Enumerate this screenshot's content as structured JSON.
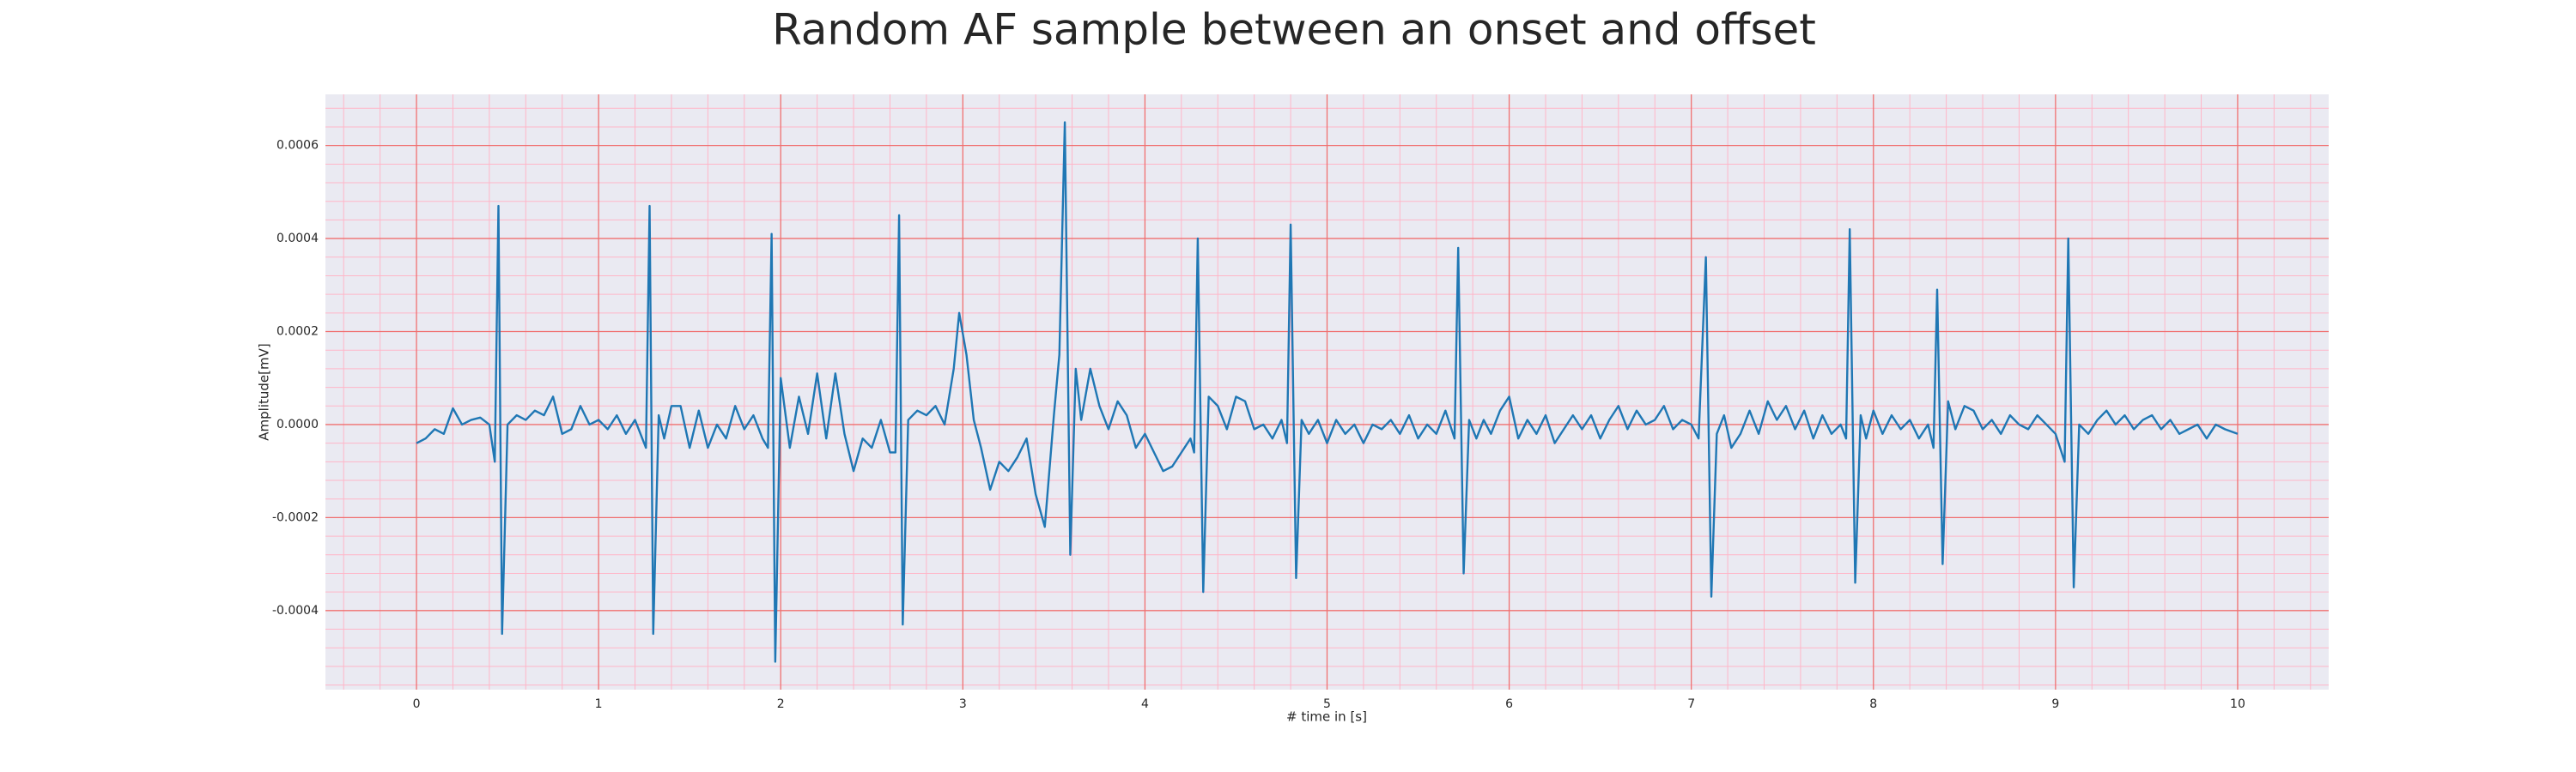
{
  "chart_data": {
    "type": "line",
    "title": "Random AF sample between an onset and offset",
    "xlabel": "# time in [s]",
    "ylabel": "Amplitude[mV]",
    "color": "#1f77b4",
    "grid": true,
    "minor_grid": true,
    "xlim": [
      -0.5,
      10.5
    ],
    "ylim": [
      -0.00057,
      0.00071
    ],
    "xticks": [
      0,
      1,
      2,
      3,
      4,
      5,
      6,
      7,
      8,
      9,
      10
    ],
    "yticks": [
      {
        "value": -0.0004,
        "label": "-0.0004"
      },
      {
        "value": -0.0002,
        "label": "-0.0002"
      },
      {
        "value": 0,
        "label": "0.0000"
      },
      {
        "value": 0.0002,
        "label": "0.0002"
      },
      {
        "value": 0.0004,
        "label": "0.0004"
      },
      {
        "value": 0.0006,
        "label": "0.0006"
      }
    ],
    "x": [
      0,
      0.05,
      0.1,
      0.15,
      0.2,
      0.25,
      0.3,
      0.35,
      0.4,
      0.43,
      0.45,
      0.47,
      0.5,
      0.55,
      0.6,
      0.65,
      0.7,
      0.75,
      0.8,
      0.85,
      0.9,
      0.95,
      1.0,
      1.05,
      1.1,
      1.15,
      1.2,
      1.26,
      1.28,
      1.3,
      1.33,
      1.36,
      1.4,
      1.45,
      1.5,
      1.55,
      1.6,
      1.65,
      1.7,
      1.75,
      1.8,
      1.85,
      1.9,
      1.93,
      1.95,
      1.97,
      2.0,
      2.05,
      2.1,
      2.15,
      2.2,
      2.25,
      2.3,
      2.35,
      2.4,
      2.45,
      2.5,
      2.55,
      2.6,
      2.63,
      2.65,
      2.67,
      2.7,
      2.75,
      2.8,
      2.85,
      2.9,
      2.95,
      2.98,
      3.02,
      3.06,
      3.1,
      3.15,
      3.2,
      3.25,
      3.3,
      3.35,
      3.4,
      3.45,
      3.5,
      3.53,
      3.56,
      3.59,
      3.62,
      3.65,
      3.7,
      3.75,
      3.8,
      3.85,
      3.9,
      3.95,
      4.0,
      4.05,
      4.1,
      4.15,
      4.2,
      4.25,
      4.27,
      4.29,
      4.32,
      4.35,
      4.4,
      4.45,
      4.5,
      4.55,
      4.6,
      4.65,
      4.7,
      4.75,
      4.78,
      4.8,
      4.83,
      4.86,
      4.9,
      4.95,
      5.0,
      5.05,
      5.1,
      5.15,
      5.2,
      5.25,
      5.3,
      5.35,
      5.4,
      5.45,
      5.5,
      5.55,
      5.6,
      5.65,
      5.7,
      5.72,
      5.75,
      5.78,
      5.82,
      5.86,
      5.9,
      5.95,
      6.0,
      6.05,
      6.1,
      6.15,
      6.2,
      6.25,
      6.3,
      6.35,
      6.4,
      6.45,
      6.5,
      6.55,
      6.6,
      6.65,
      6.7,
      6.75,
      6.8,
      6.85,
      6.9,
      6.95,
      7.0,
      7.04,
      7.08,
      7.11,
      7.14,
      7.18,
      7.22,
      7.27,
      7.32,
      7.37,
      7.42,
      7.47,
      7.52,
      7.57,
      7.62,
      7.67,
      7.72,
      7.77,
      7.82,
      7.85,
      7.87,
      7.9,
      7.93,
      7.96,
      8.0,
      8.05,
      8.1,
      8.15,
      8.2,
      8.25,
      8.3,
      8.33,
      8.35,
      8.38,
      8.41,
      8.45,
      8.5,
      8.55,
      8.6,
      8.65,
      8.7,
      8.75,
      8.8,
      8.85,
      8.9,
      8.95,
      9.0,
      9.05,
      9.07,
      9.1,
      9.13,
      9.18,
      9.23,
      9.28,
      9.33,
      9.38,
      9.43,
      9.48,
      9.53,
      9.58,
      9.63,
      9.68,
      9.73,
      9.78,
      9.83,
      9.88,
      9.93,
      10.0
    ],
    "values": [
      -4e-05,
      -3e-05,
      -1e-05,
      -2e-05,
      3.5e-05,
      0,
      1e-05,
      1.5e-05,
      0,
      -8e-05,
      0.00047,
      -0.00045,
      0,
      2e-05,
      1e-05,
      3e-05,
      2e-05,
      6e-05,
      -2e-05,
      -1e-05,
      4e-05,
      0,
      1e-05,
      -1e-05,
      2e-05,
      -2e-05,
      1e-05,
      -5e-05,
      0.00047,
      -0.00045,
      2e-05,
      -3e-05,
      4e-05,
      4e-05,
      -5e-05,
      3e-05,
      -5e-05,
      0,
      -3e-05,
      4e-05,
      -1e-05,
      2e-05,
      -3e-05,
      -5e-05,
      0.00041,
      -0.00051,
      0.0001,
      -5e-05,
      6e-05,
      -2e-05,
      0.00011,
      -3e-05,
      0.00011,
      -2e-05,
      -0.0001,
      -3e-05,
      -5e-05,
      1e-05,
      -6e-05,
      -6e-05,
      0.00045,
      -0.00043,
      1e-05,
      3e-05,
      2e-05,
      4e-05,
      0,
      0.00012,
      0.00024,
      0.00015,
      1e-05,
      -5e-05,
      -0.00014,
      -8e-05,
      -0.0001,
      -7e-05,
      -3e-05,
      -0.00015,
      -0.00022,
      2e-05,
      0.00015,
      0.00065,
      -0.00028,
      0.00012,
      1e-05,
      0.00012,
      4e-05,
      -1e-05,
      5e-05,
      2e-05,
      -5e-05,
      -2e-05,
      -6e-05,
      -0.0001,
      -9e-05,
      -6e-05,
      -3e-05,
      -6e-05,
      0.0004,
      -0.00036,
      6e-05,
      4e-05,
      -1e-05,
      6e-05,
      5e-05,
      -1e-05,
      0,
      -3e-05,
      1e-05,
      -4e-05,
      0.00043,
      -0.00033,
      1e-05,
      -2e-05,
      1e-05,
      -4e-05,
      1e-05,
      -2e-05,
      0,
      -4e-05,
      0,
      -1e-05,
      1e-05,
      -2e-05,
      2e-05,
      -3e-05,
      0,
      -2e-05,
      3e-05,
      -3e-05,
      0.00038,
      -0.00032,
      1e-05,
      -3e-05,
      1e-05,
      -2e-05,
      3e-05,
      6e-05,
      -3e-05,
      1e-05,
      -2e-05,
      2e-05,
      -4e-05,
      -1e-05,
      2e-05,
      -1e-05,
      2e-05,
      -3e-05,
      1e-05,
      4e-05,
      -1e-05,
      3e-05,
      0,
      1e-05,
      4e-05,
      -1e-05,
      1e-05,
      0,
      -3e-05,
      0.00036,
      -0.00037,
      -2e-05,
      2e-05,
      -5e-05,
      -2e-05,
      3e-05,
      -2e-05,
      5e-05,
      1e-05,
      4e-05,
      -1e-05,
      3e-05,
      -3e-05,
      2e-05,
      -2e-05,
      0,
      -3e-05,
      0.00042,
      -0.00034,
      2e-05,
      -3e-05,
      3e-05,
      -2e-05,
      2e-05,
      -1e-05,
      1e-05,
      -3e-05,
      0,
      -5e-05,
      0.00029,
      -0.0003,
      5e-05,
      -1e-05,
      4e-05,
      3e-05,
      -1e-05,
      1e-05,
      -2e-05,
      2e-05,
      0,
      -1e-05,
      2e-05,
      0,
      -2e-05,
      -8e-05,
      0.0004,
      -0.00035,
      0,
      -2e-05,
      1e-05,
      3e-05,
      0,
      2e-05,
      -1e-05,
      1e-05,
      2e-05,
      -1e-05,
      1e-05,
      -2e-05,
      -1e-05,
      0,
      -3e-05,
      0,
      -1e-05,
      -2e-05
    ]
  }
}
